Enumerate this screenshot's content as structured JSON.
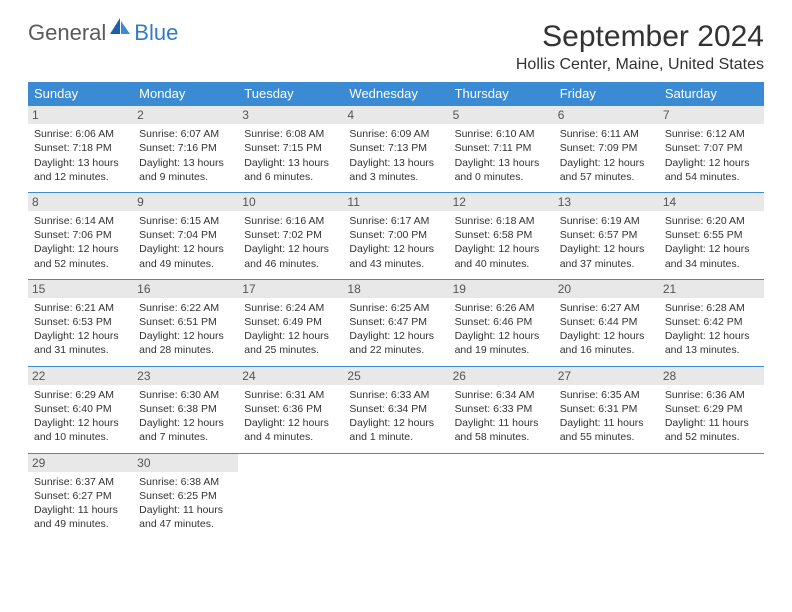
{
  "brand": {
    "part1": "General",
    "part2": "Blue"
  },
  "title": "September 2024",
  "location": "Hollis Center, Maine, United States",
  "colors": {
    "header_bg": "#3a8bd4",
    "header_fg": "#ffffff",
    "daynum_bg": "#e8e8e8",
    "rule": "#3a8bd4",
    "logo_gray": "#5a5a5a",
    "logo_blue": "#2f7dc4"
  },
  "day_labels": [
    "Sunday",
    "Monday",
    "Tuesday",
    "Wednesday",
    "Thursday",
    "Friday",
    "Saturday"
  ],
  "weeks": [
    [
      {
        "n": "1",
        "sr": "Sunrise: 6:06 AM",
        "ss": "Sunset: 7:18 PM",
        "dl": "Daylight: 13 hours and 12 minutes."
      },
      {
        "n": "2",
        "sr": "Sunrise: 6:07 AM",
        "ss": "Sunset: 7:16 PM",
        "dl": "Daylight: 13 hours and 9 minutes."
      },
      {
        "n": "3",
        "sr": "Sunrise: 6:08 AM",
        "ss": "Sunset: 7:15 PM",
        "dl": "Daylight: 13 hours and 6 minutes."
      },
      {
        "n": "4",
        "sr": "Sunrise: 6:09 AM",
        "ss": "Sunset: 7:13 PM",
        "dl": "Daylight: 13 hours and 3 minutes."
      },
      {
        "n": "5",
        "sr": "Sunrise: 6:10 AM",
        "ss": "Sunset: 7:11 PM",
        "dl": "Daylight: 13 hours and 0 minutes."
      },
      {
        "n": "6",
        "sr": "Sunrise: 6:11 AM",
        "ss": "Sunset: 7:09 PM",
        "dl": "Daylight: 12 hours and 57 minutes."
      },
      {
        "n": "7",
        "sr": "Sunrise: 6:12 AM",
        "ss": "Sunset: 7:07 PM",
        "dl": "Daylight: 12 hours and 54 minutes."
      }
    ],
    [
      {
        "n": "8",
        "sr": "Sunrise: 6:14 AM",
        "ss": "Sunset: 7:06 PM",
        "dl": "Daylight: 12 hours and 52 minutes."
      },
      {
        "n": "9",
        "sr": "Sunrise: 6:15 AM",
        "ss": "Sunset: 7:04 PM",
        "dl": "Daylight: 12 hours and 49 minutes."
      },
      {
        "n": "10",
        "sr": "Sunrise: 6:16 AM",
        "ss": "Sunset: 7:02 PM",
        "dl": "Daylight: 12 hours and 46 minutes."
      },
      {
        "n": "11",
        "sr": "Sunrise: 6:17 AM",
        "ss": "Sunset: 7:00 PM",
        "dl": "Daylight: 12 hours and 43 minutes."
      },
      {
        "n": "12",
        "sr": "Sunrise: 6:18 AM",
        "ss": "Sunset: 6:58 PM",
        "dl": "Daylight: 12 hours and 40 minutes."
      },
      {
        "n": "13",
        "sr": "Sunrise: 6:19 AM",
        "ss": "Sunset: 6:57 PM",
        "dl": "Daylight: 12 hours and 37 minutes."
      },
      {
        "n": "14",
        "sr": "Sunrise: 6:20 AM",
        "ss": "Sunset: 6:55 PM",
        "dl": "Daylight: 12 hours and 34 minutes."
      }
    ],
    [
      {
        "n": "15",
        "sr": "Sunrise: 6:21 AM",
        "ss": "Sunset: 6:53 PM",
        "dl": "Daylight: 12 hours and 31 minutes."
      },
      {
        "n": "16",
        "sr": "Sunrise: 6:22 AM",
        "ss": "Sunset: 6:51 PM",
        "dl": "Daylight: 12 hours and 28 minutes."
      },
      {
        "n": "17",
        "sr": "Sunrise: 6:24 AM",
        "ss": "Sunset: 6:49 PM",
        "dl": "Daylight: 12 hours and 25 minutes."
      },
      {
        "n": "18",
        "sr": "Sunrise: 6:25 AM",
        "ss": "Sunset: 6:47 PM",
        "dl": "Daylight: 12 hours and 22 minutes."
      },
      {
        "n": "19",
        "sr": "Sunrise: 6:26 AM",
        "ss": "Sunset: 6:46 PM",
        "dl": "Daylight: 12 hours and 19 minutes."
      },
      {
        "n": "20",
        "sr": "Sunrise: 6:27 AM",
        "ss": "Sunset: 6:44 PM",
        "dl": "Daylight: 12 hours and 16 minutes."
      },
      {
        "n": "21",
        "sr": "Sunrise: 6:28 AM",
        "ss": "Sunset: 6:42 PM",
        "dl": "Daylight: 12 hours and 13 minutes."
      }
    ],
    [
      {
        "n": "22",
        "sr": "Sunrise: 6:29 AM",
        "ss": "Sunset: 6:40 PM",
        "dl": "Daylight: 12 hours and 10 minutes."
      },
      {
        "n": "23",
        "sr": "Sunrise: 6:30 AM",
        "ss": "Sunset: 6:38 PM",
        "dl": "Daylight: 12 hours and 7 minutes."
      },
      {
        "n": "24",
        "sr": "Sunrise: 6:31 AM",
        "ss": "Sunset: 6:36 PM",
        "dl": "Daylight: 12 hours and 4 minutes."
      },
      {
        "n": "25",
        "sr": "Sunrise: 6:33 AM",
        "ss": "Sunset: 6:34 PM",
        "dl": "Daylight: 12 hours and 1 minute."
      },
      {
        "n": "26",
        "sr": "Sunrise: 6:34 AM",
        "ss": "Sunset: 6:33 PM",
        "dl": "Daylight: 11 hours and 58 minutes."
      },
      {
        "n": "27",
        "sr": "Sunrise: 6:35 AM",
        "ss": "Sunset: 6:31 PM",
        "dl": "Daylight: 11 hours and 55 minutes."
      },
      {
        "n": "28",
        "sr": "Sunrise: 6:36 AM",
        "ss": "Sunset: 6:29 PM",
        "dl": "Daylight: 11 hours and 52 minutes."
      }
    ],
    [
      {
        "n": "29",
        "sr": "Sunrise: 6:37 AM",
        "ss": "Sunset: 6:27 PM",
        "dl": "Daylight: 11 hours and 49 minutes."
      },
      {
        "n": "30",
        "sr": "Sunrise: 6:38 AM",
        "ss": "Sunset: 6:25 PM",
        "dl": "Daylight: 11 hours and 47 minutes."
      },
      null,
      null,
      null,
      null,
      null
    ]
  ]
}
